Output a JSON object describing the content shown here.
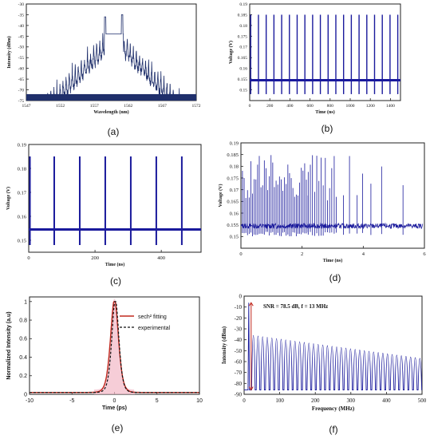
{
  "figure": {
    "panel_captions": [
      "(a)",
      "(b)",
      "(c)",
      "(d)",
      "(e)",
      "(f)"
    ]
  },
  "colors": {
    "navy": "#1f2f6b",
    "blue": "#1a1a9c",
    "red": "#c0281e",
    "pink": "#f2b8c6",
    "black": "#111111"
  },
  "chart_data": [
    {
      "panel": "a",
      "type": "line",
      "title": "",
      "xlabel": "Wavelength (nm)",
      "ylabel": "Intensity (dBm)",
      "xlim": [
        1547,
        1572
      ],
      "ylim": [
        -75,
        -30
      ],
      "xticks": [
        1547,
        1552,
        1557,
        1562,
        1567,
        1572
      ],
      "yticks": [
        -30,
        -35,
        -40,
        -45,
        -50,
        -55,
        -60,
        -65,
        -70,
        -75
      ],
      "envelope_peak_dbm": -35,
      "central_dip_dbm": -44,
      "peaks_nm": [
        1558.6,
        1561.1
      ]
    },
    {
      "panel": "b",
      "type": "line",
      "title": "",
      "xlabel": "Time (ns)",
      "ylabel": "Voltage (V)",
      "xlim": [
        0,
        1500
      ],
      "ylim": [
        0.145,
        0.19
      ],
      "xticks": [
        0,
        200,
        400,
        600,
        800,
        1000,
        1200,
        1400
      ],
      "yticks": [
        0.15,
        0.155,
        0.16,
        0.165,
        0.17,
        0.175,
        0.18,
        0.185,
        0.19
      ],
      "baseline_v": 0.1545,
      "pulse_top_v": 0.185,
      "pulse_period_ns": 77
    },
    {
      "panel": "c",
      "type": "line",
      "title": "",
      "xlabel": "Time (ns)",
      "ylabel": "Voltage (V)",
      "xlim": [
        0,
        520
      ],
      "ylim": [
        0.145,
        0.19
      ],
      "xticks": [
        0,
        200,
        400
      ],
      "yticks": [
        0.15,
        0.16,
        0.17,
        0.18,
        0.19
      ],
      "baseline_v": 0.1545,
      "pulse_top_v": 0.185,
      "pulse_bottom_v": 0.148,
      "pulse_times_ns": [
        0,
        77,
        154,
        231,
        308,
        385,
        462
      ]
    },
    {
      "panel": "d",
      "type": "line",
      "title": "",
      "xlabel": "Time (ns)",
      "ylabel": "Voltage (V)",
      "xlim": [
        0,
        6
      ],
      "ylim": [
        0.145,
        0.19
      ],
      "xticks": [
        0,
        2,
        4,
        6
      ],
      "yticks": [
        0.15,
        0.155,
        0.16,
        0.165,
        0.17,
        0.175,
        0.18,
        0.185,
        0.19
      ],
      "baseline_v": 0.1545
    },
    {
      "panel": "e",
      "type": "line",
      "title": "",
      "xlabel": "Time (ps)",
      "ylabel": "Normalized Intensity (a.u)",
      "xlim": [
        -10,
        10
      ],
      "ylim": [
        0,
        1.05
      ],
      "xticks": [
        -10,
        -5,
        0,
        5,
        10
      ],
      "yticks": [
        0,
        0.2,
        0.4,
        0.6,
        0.8,
        1
      ],
      "series": [
        {
          "name": "sech² fitting",
          "style": "solid-red",
          "center": 0,
          "peak": 1,
          "width_ps": 0.75
        },
        {
          "name": "experimental",
          "style": "dashed-black",
          "center": 0,
          "peak": 1,
          "width_ps": 0.7
        }
      ]
    },
    {
      "panel": "f",
      "type": "line",
      "title": "",
      "xlabel": "Frequency (MHz)",
      "ylabel": "Intensity (dBm)",
      "xlim": [
        0,
        500
      ],
      "ylim": [
        -90,
        0
      ],
      "xticks": [
        0,
        100,
        200,
        300,
        400,
        500
      ],
      "yticks": [
        0,
        -10,
        -20,
        -30,
        -40,
        -50,
        -60,
        -70,
        -80,
        -90
      ],
      "annotation": "SNR = 78.5 dB, f = 13 MHz",
      "fundamental_mhz": 13,
      "fundamental_dbm": -6,
      "noise_floor_dbm": -86,
      "harmonic_spacing_mhz": 13,
      "harmonic_peaks_dbm_first": -36,
      "harmonic_peaks_dbm_last": -57
    }
  ]
}
